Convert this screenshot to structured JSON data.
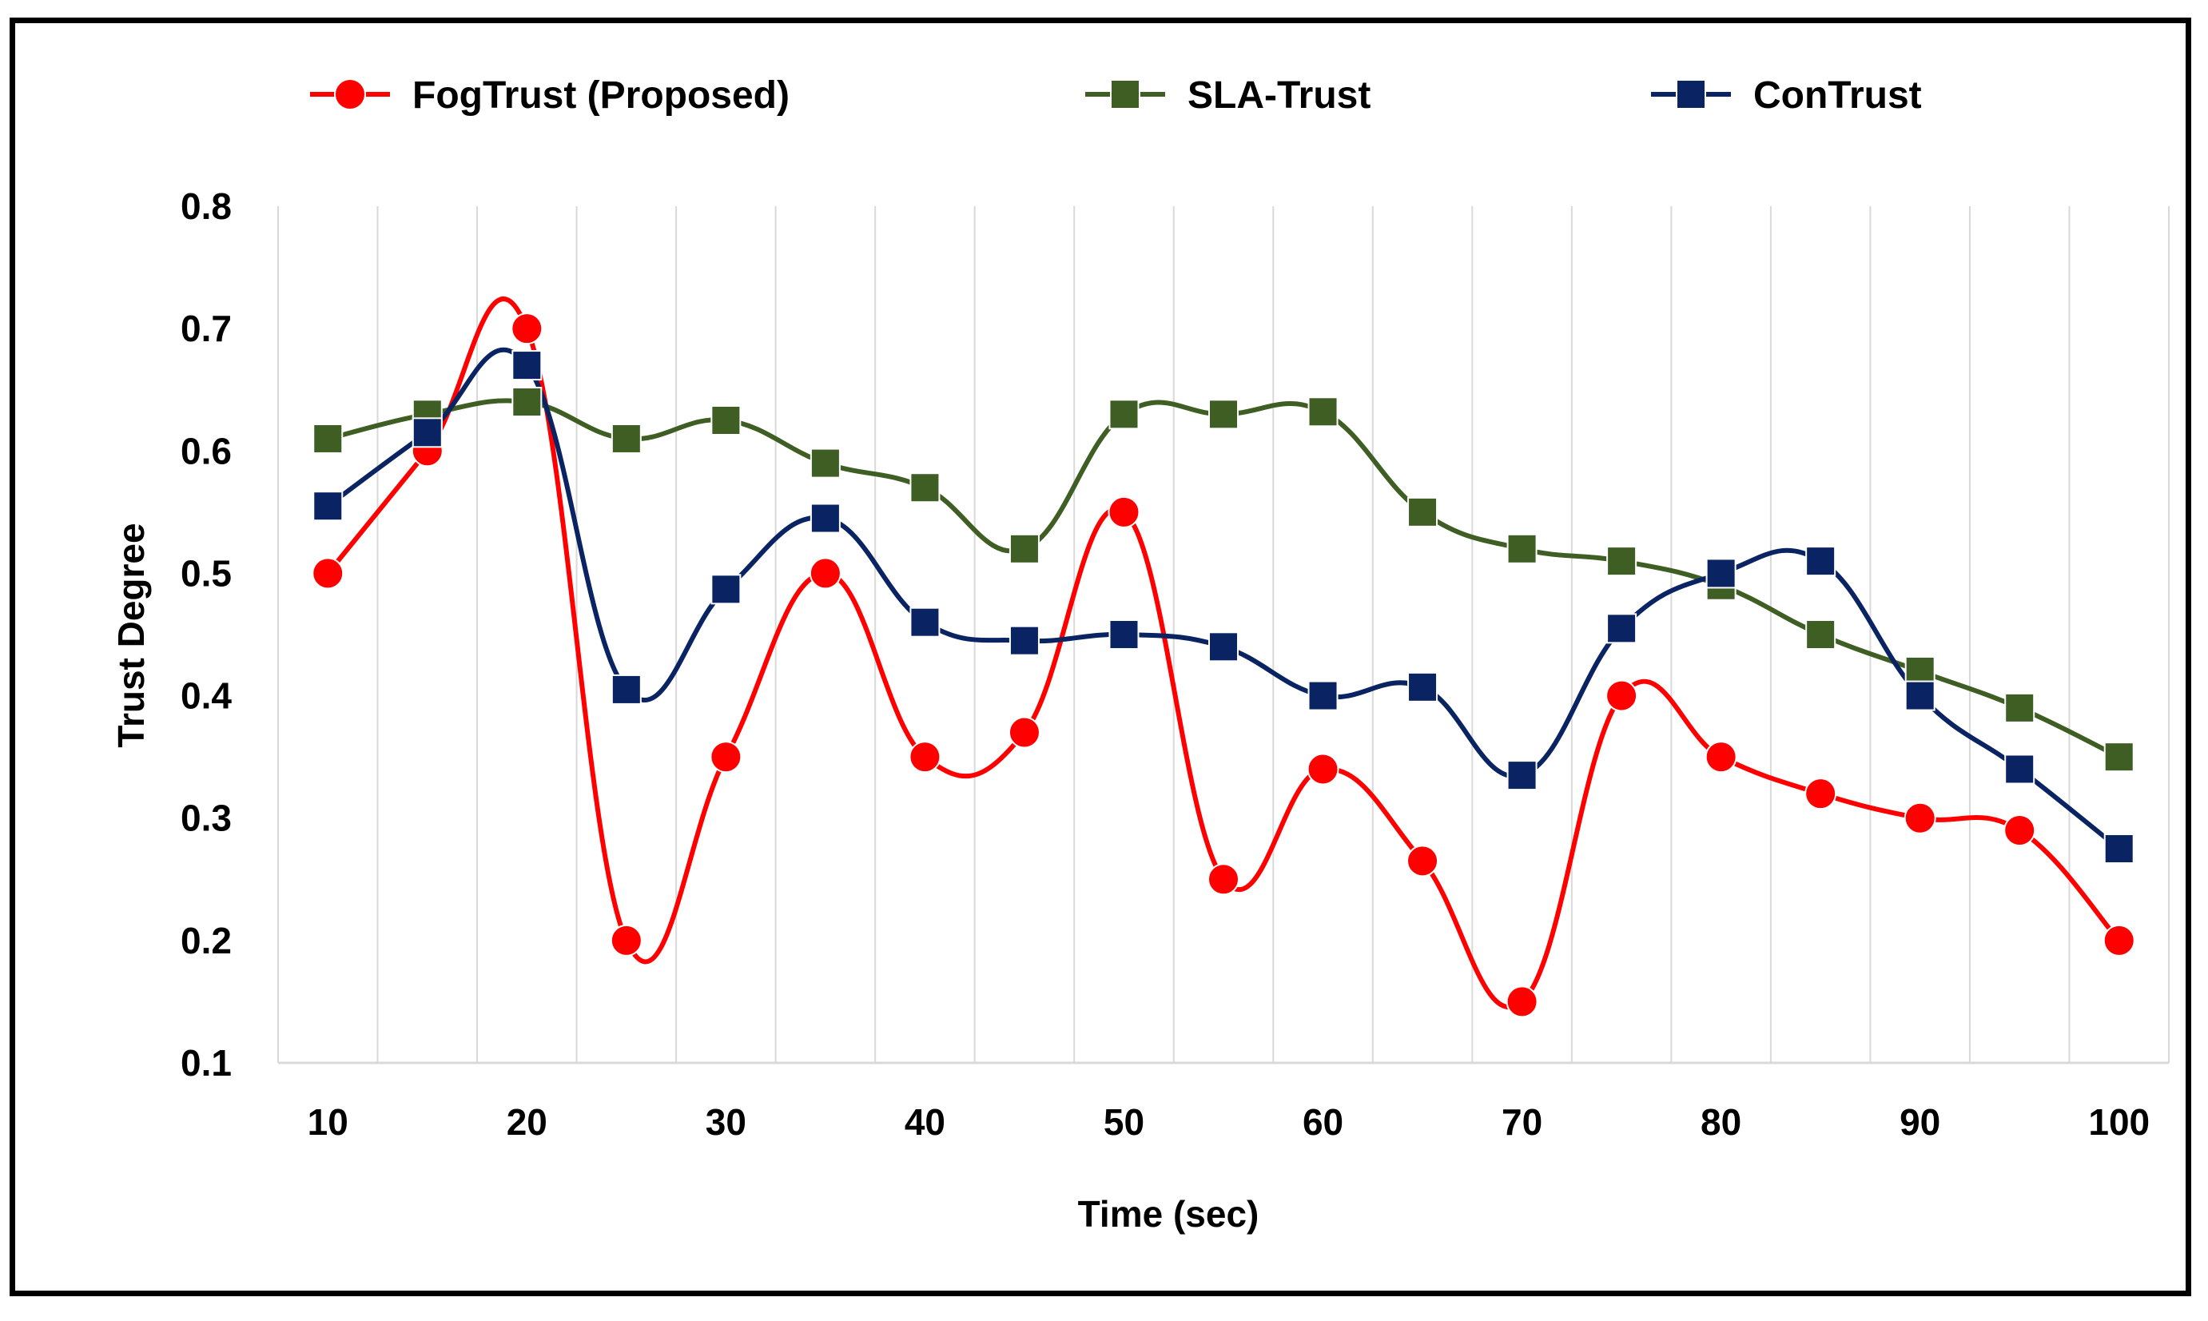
{
  "chart_data": {
    "type": "line",
    "title": "",
    "xlabel": "Time (sec)",
    "ylabel": "Trust Degree",
    "x": [
      10,
      15,
      20,
      25,
      30,
      35,
      40,
      45,
      50,
      55,
      60,
      65,
      70,
      75,
      80,
      85,
      90,
      95,
      100
    ],
    "x_tick_labels": [
      "10",
      "20",
      "30",
      "40",
      "50",
      "60",
      "70",
      "80",
      "90",
      "100"
    ],
    "x_tick_values": [
      10,
      20,
      30,
      40,
      50,
      60,
      70,
      80,
      90,
      100
    ],
    "y_tick_labels": [
      "0.1",
      "0.2",
      "0.3",
      "0.4",
      "0.5",
      "0.6",
      "0.7",
      "0.8"
    ],
    "y_tick_values": [
      0.1,
      0.2,
      0.3,
      0.4,
      0.5,
      0.6,
      0.7,
      0.8
    ],
    "xlim": [
      7.5,
      102.5
    ],
    "ylim": [
      0.1,
      0.8
    ],
    "grid": "vertical",
    "legend_position": "top",
    "series": [
      {
        "name": "FogTrust (Proposed)",
        "color": "#ff0000",
        "marker": "circle",
        "values": [
          0.5,
          0.6,
          0.7,
          0.2,
          0.35,
          0.5,
          0.35,
          0.37,
          0.55,
          0.25,
          0.34,
          0.265,
          0.15,
          0.4,
          0.35,
          0.32,
          0.3,
          0.29,
          0.2
        ]
      },
      {
        "name": "SLA-Trust",
        "color": "#3e5e24",
        "marker": "square",
        "values": [
          0.61,
          0.63,
          0.64,
          0.61,
          0.625,
          0.59,
          0.57,
          0.52,
          0.63,
          0.63,
          0.632,
          0.55,
          0.52,
          0.51,
          0.49,
          0.45,
          0.42,
          0.39,
          0.35
        ]
      },
      {
        "name": "ConTrust",
        "color": "#0a2463",
        "marker": "square",
        "values": [
          0.555,
          0.615,
          0.67,
          0.405,
          0.487,
          0.545,
          0.46,
          0.445,
          0.45,
          0.44,
          0.4,
          0.407,
          0.335,
          0.455,
          0.5,
          0.51,
          0.4,
          0.34,
          0.275
        ]
      }
    ]
  }
}
